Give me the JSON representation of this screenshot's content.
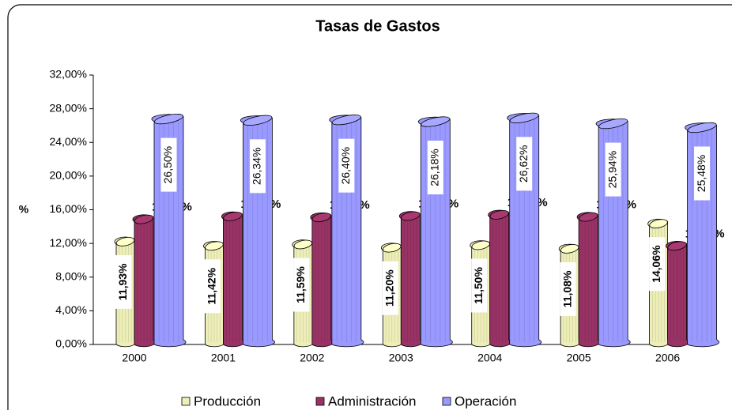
{
  "chart_data": {
    "type": "bar",
    "title": "Tasas de Gastos",
    "y_label": "%",
    "categories": [
      "2000",
      "2001",
      "2002",
      "2003",
      "2004",
      "2005",
      "2006"
    ],
    "series": [
      {
        "name": "Producción",
        "color": "#eeeeb8",
        "values": [
          11.93,
          11.42,
          11.59,
          11.2,
          11.5,
          11.08,
          14.06
        ],
        "value_labels": [
          "11,93%",
          "11,42%",
          "11,59%",
          "11,20%",
          "11,50%",
          "11,08%",
          "14,06%"
        ]
      },
      {
        "name": "Administración",
        "color": "#993366",
        "values": [
          14.58,
          14.92,
          14.81,
          14.97,
          15.12,
          14.86,
          11.42
        ],
        "value_labels": [
          "14,58%",
          "14,92%",
          "14,81%",
          "14,97%",
          "15,12%",
          "14,86%",
          "11,42%"
        ]
      },
      {
        "name": "Operación",
        "color": "#9999ff",
        "values": [
          26.5,
          26.34,
          26.4,
          26.18,
          26.62,
          25.94,
          25.48
        ],
        "value_labels": [
          "26,50%",
          "26,34%",
          "26,40%",
          "26,18%",
          "26,62%",
          "25,94%",
          "25,48%"
        ]
      }
    ],
    "ylim": [
      0,
      32
    ],
    "yticks": [
      {
        "value": 0,
        "label": "0,00%"
      },
      {
        "value": 4,
        "label": "4,00%"
      },
      {
        "value": 8,
        "label": "8,00%"
      },
      {
        "value": 12,
        "label": "12,00%"
      },
      {
        "value": 16,
        "label": "16,00%"
      },
      {
        "value": 20,
        "label": "20,00%"
      },
      {
        "value": 24,
        "label": "24,00%"
      },
      {
        "value": 28,
        "label": "28,00%"
      },
      {
        "value": 32,
        "label": "32,00%"
      }
    ],
    "legend": "bottom"
  }
}
